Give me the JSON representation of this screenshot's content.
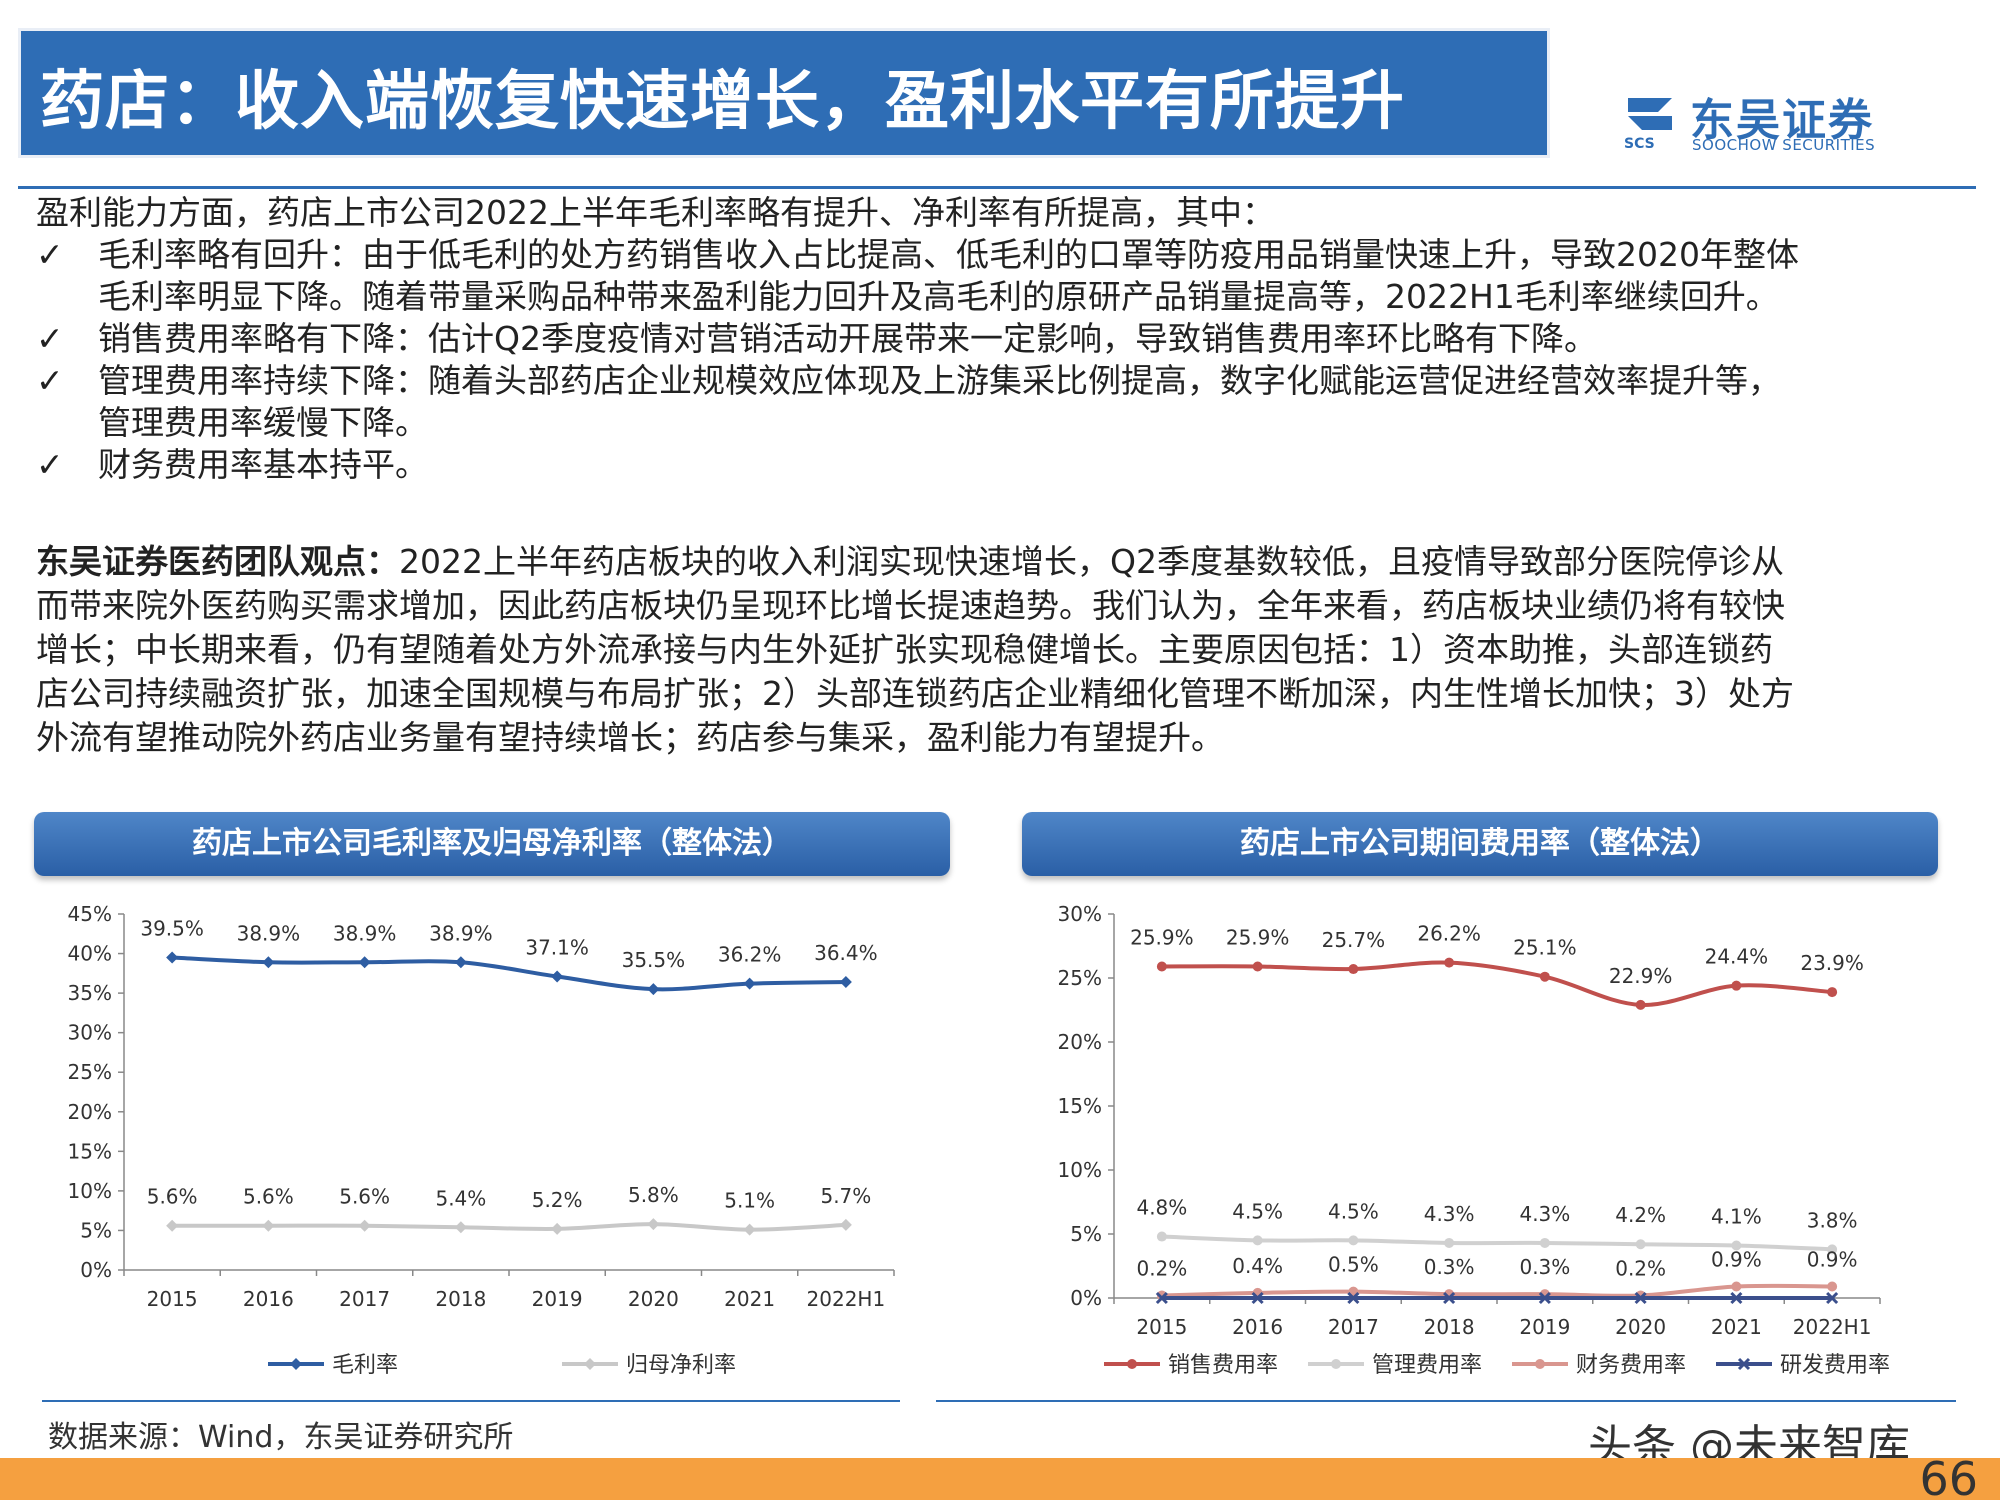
{
  "header": {
    "title": "药店：收入端恢复快速增长，盈利水平有所提升",
    "logo_cn": "东吴证券",
    "logo_en": "SOOCHOW SECURITIES",
    "logo_scs": "SCS"
  },
  "summary": {
    "intro": "盈利能力方面，药店上市公司2022上半年毛利率略有提升、净利率有所提高，其中：",
    "check": "✓",
    "bullets": [
      {
        "lines": [
          "毛利率略有回升：由于低毛利的处方药销售收入占比提高、低毛利的口罩等防疫用品销量快速上升，导致2020年整体",
          "毛利率明显下降。随着带量采购品种带来盈利能力回升及高毛利的原研产品销量提高等，2022H1毛利率继续回升。"
        ]
      },
      {
        "lines": [
          "销售费用率略有下降：估计Q2季度疫情对营销活动开展带来一定影响，导致销售费用率环比略有下降。"
        ]
      },
      {
        "lines": [
          "管理费用率持续下降：随着头部药店企业规模效应体现及上游集采比例提高，数字化赋能运营促进经营效率提升等，",
          "管理费用率缓慢下降。"
        ]
      },
      {
        "lines": [
          "财务费用率基本持平。"
        ]
      }
    ]
  },
  "view": {
    "label": "东吴证券医药团队观点：",
    "lines": [
      "2022上半年药店板块的收入利润实现快速增长，Q2季度基数较低，且疫情导致部分医院停诊从",
      "而带来院外医药购买需求增加，因此药店板块仍呈现环比增长提速趋势。我们认为，全年来看，药店板块业绩仍将有较快",
      "增长；中长期来看，仍有望随着处方外流承接与内生外延扩张实现稳健增长。主要原因包括：1）资本助推，头部连锁药",
      "店公司持续融资扩张，加速全国规模与布局扩张；2）头部连锁药店企业精细化管理不断加深，内生性增长加快；3）处方",
      "外流有望推动院外药店业务量有望持续增长；药店参与集采，盈利能力有望提升。"
    ]
  },
  "chart_titles": [
    "药店上市公司毛利率及归母净利率（整体法）",
    "药店上市公司期间费用率（整体法）"
  ],
  "chart_data": [
    {
      "type": "line",
      "title": "药店上市公司毛利率及归母净利率（整体法）",
      "categories": [
        "2015",
        "2016",
        "2017",
        "2018",
        "2019",
        "2020",
        "2021",
        "2022H1"
      ],
      "ylim": [
        0,
        45
      ],
      "yticks": [
        0,
        5,
        10,
        15,
        20,
        25,
        30,
        35,
        40,
        45
      ],
      "ytick_labels": [
        "0%",
        "5%",
        "10%",
        "15%",
        "20%",
        "25%",
        "30%",
        "35%",
        "40%",
        "45%"
      ],
      "legend_position": "bottom",
      "series": [
        {
          "name": "毛利率",
          "values": [
            39.5,
            38.9,
            38.9,
            38.9,
            37.1,
            35.5,
            36.2,
            36.4
          ],
          "labels": [
            "39.5%",
            "38.9%",
            "38.9%",
            "38.9%",
            "37.1%",
            "35.5%",
            "36.2%",
            "36.4%"
          ],
          "color": "#2e5da2",
          "marker": "diamond"
        },
        {
          "name": "归母净利率",
          "values": [
            5.6,
            5.6,
            5.6,
            5.4,
            5.2,
            5.8,
            5.1,
            5.7
          ],
          "labels": [
            "5.6%",
            "5.6%",
            "5.6%",
            "5.4%",
            "5.2%",
            "5.8%",
            "5.1%",
            "5.7%"
          ],
          "color": "#c8c8c8",
          "marker": "diamond"
        }
      ]
    },
    {
      "type": "line",
      "title": "药店上市公司期间费用率（整体法）",
      "categories": [
        "2015",
        "2016",
        "2017",
        "2018",
        "2019",
        "2020",
        "2021",
        "2022H1"
      ],
      "ylim": [
        0,
        30
      ],
      "yticks": [
        0,
        5,
        10,
        15,
        20,
        25,
        30
      ],
      "ytick_labels": [
        "0%",
        "5%",
        "10%",
        "15%",
        "20%",
        "25%",
        "30%"
      ],
      "legend_position": "bottom",
      "series": [
        {
          "name": "销售费用率",
          "values": [
            25.9,
            25.9,
            25.7,
            26.2,
            25.1,
            22.9,
            24.4,
            23.9
          ],
          "labels": [
            "25.9%",
            "25.9%",
            "25.7%",
            "26.2%",
            "25.1%",
            "22.9%",
            "24.4%",
            "23.9%"
          ],
          "color": "#c0504d",
          "marker": "circle"
        },
        {
          "name": "管理费用率",
          "values": [
            4.8,
            4.5,
            4.5,
            4.3,
            4.3,
            4.2,
            4.1,
            3.8
          ],
          "labels": [
            "4.8%",
            "4.5%",
            "4.5%",
            "4.3%",
            "4.3%",
            "4.2%",
            "4.1%",
            "3.8%"
          ],
          "color": "#d0d0d0",
          "marker": "circle"
        },
        {
          "name": "财务费用率",
          "values": [
            0.2,
            0.4,
            0.5,
            0.3,
            0.3,
            0.2,
            0.9,
            0.9
          ],
          "labels": [
            "0.2%",
            "0.4%",
            "0.5%",
            "0.3%",
            "0.3%",
            "0.2%",
            "0.9%",
            "0.9%"
          ],
          "color": "#d9968f",
          "marker": "circle"
        },
        {
          "name": "研发费用率",
          "values": [
            0,
            0,
            0,
            0,
            0,
            0,
            0,
            0
          ],
          "labels": [],
          "color": "#3b4f8c",
          "marker": "x"
        }
      ]
    }
  ],
  "footer": {
    "source": "数据来源：Wind，东吴证券研究所",
    "watermark": "头条 @未来智库",
    "page_number": "66"
  }
}
